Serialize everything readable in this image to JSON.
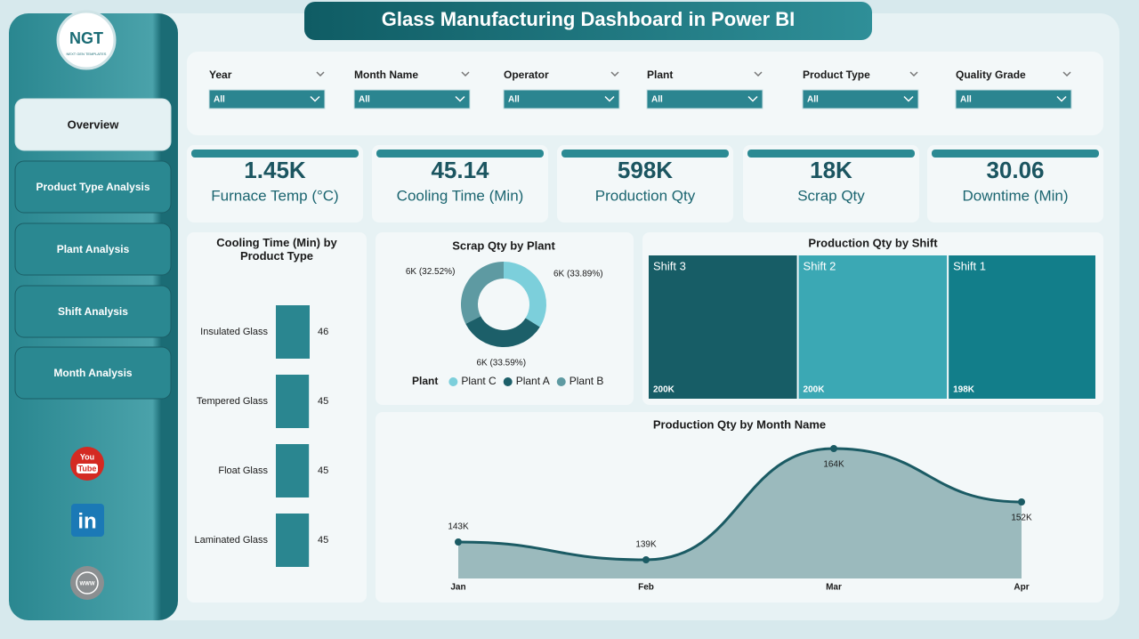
{
  "header": {
    "title": "Glass Manufacturing Dashboard in Power BI"
  },
  "logo": {
    "mark": "NGT",
    "tagline": "NEXT GEN TEMPLATES"
  },
  "nav": [
    "Overview",
    "Product Type Analysis",
    "Plant Analysis",
    "Shift Analysis",
    "Month Analysis"
  ],
  "social": {
    "youtube": [
      "You",
      "Tube"
    ],
    "linkedin": "in",
    "web": "WWW"
  },
  "filters": [
    {
      "label": "Year",
      "value": "All"
    },
    {
      "label": "Month Name",
      "value": "All"
    },
    {
      "label": "Operator",
      "value": "All"
    },
    {
      "label": "Plant",
      "value": "All"
    },
    {
      "label": "Product Type",
      "value": "All"
    },
    {
      "label": "Quality Grade",
      "value": "All"
    }
  ],
  "kpis": [
    {
      "value": "1.45K",
      "label": "Furnace Temp (°C)"
    },
    {
      "value": "45.14",
      "label": "Cooling Time (Min)"
    },
    {
      "value": "598K",
      "label": "Production Qty"
    },
    {
      "value": "18K",
      "label": "Scrap Qty"
    },
    {
      "value": "30.06",
      "label": "Downtime (Min)"
    }
  ],
  "chart_data": [
    {
      "type": "bar",
      "title": "Cooling Time (Min) by Product Type",
      "categories": [
        "Insulated Glass",
        "Tempered Glass",
        "Float Glass",
        "Laminated Glass"
      ],
      "values": [
        46,
        45,
        45,
        45
      ],
      "color": "#2a8690"
    },
    {
      "type": "donut",
      "title": "Scrap Qty by Plant",
      "legend_title": "Plant",
      "categories": [
        "Plant C",
        "Plant A",
        "Plant B"
      ],
      "values": [
        33.89,
        33.59,
        32.52
      ],
      "value_labels": [
        "6K (33.89%)",
        "6K (33.59%)",
        "6K (32.52%)"
      ],
      "colors": [
        "#7ccfdb",
        "#1c5f69",
        "#5e9aa2"
      ]
    },
    {
      "type": "treemap",
      "title": "Production Qty by Shift",
      "categories": [
        "Shift 3",
        "Shift 2",
        "Shift 1"
      ],
      "values": [
        200000,
        200000,
        198000
      ],
      "value_labels": [
        "200K",
        "200K",
        "198K"
      ],
      "colors": [
        "#175d66",
        "#3ba8b4",
        "#127e8a"
      ]
    },
    {
      "type": "area",
      "title": "Production Qty by Month Name",
      "categories": [
        "Jan",
        "Feb",
        "Mar",
        "Apr"
      ],
      "values": [
        143000,
        139000,
        164000,
        152000
      ],
      "value_labels": [
        "143K",
        "139K",
        "164K",
        "152K"
      ],
      "color": "#1b5b64",
      "fill": "#9bbabd"
    }
  ]
}
